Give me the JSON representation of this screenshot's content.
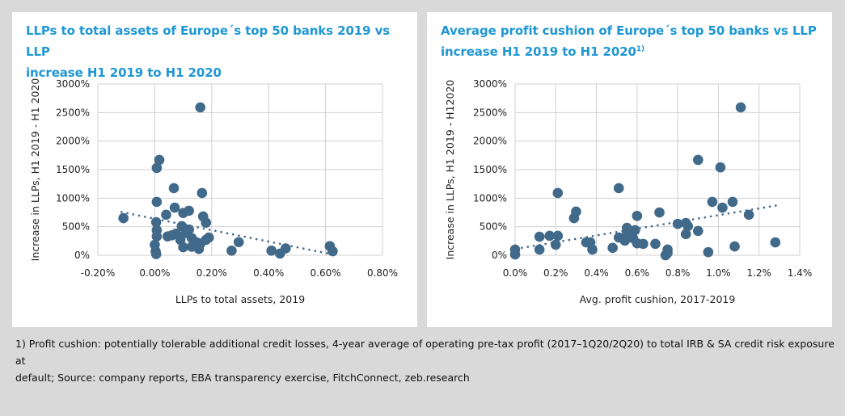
{
  "colors": {
    "title": "#1f97d4",
    "point": "#41698a",
    "grid": "#d0d0d0",
    "background": "#d9d9d9"
  },
  "chart_data": [
    {
      "type": "scatter",
      "title": "LLPs to total assets of Europe´s top 50 banks 2019 vs LLP increase H1 2019 to H1 2020",
      "title_line1": "LLPs to total assets of Europe´s top 50 banks 2019 vs LLP",
      "title_line2": "increase H1 2019 to H1 2020",
      "xlabel": "LLPs to total assets, 2019",
      "ylabel": "Increase in LLPs, H1 2019 - H1 2020",
      "xlim": [
        -0.2,
        0.8
      ],
      "ylim": [
        0,
        3000
      ],
      "grid": true,
      "legend": "none",
      "x_ticks": [
        "-0.20%",
        "0.00%",
        "0.20%",
        "0.40%",
        "0.60%",
        "0.80%"
      ],
      "x_tick_values": [
        -0.2,
        0.0,
        0.2,
        0.4,
        0.6,
        0.8
      ],
      "y_ticks": [
        "0%",
        "500%",
        "1000%",
        "1500%",
        "2000%",
        "2500%",
        "3000%"
      ],
      "y_tick_values": [
        0,
        500,
        1000,
        1500,
        2000,
        2500,
        3000
      ],
      "trendline": {
        "style": "dotted",
        "x": [
          -0.12,
          0.62
        ],
        "y": [
          760,
          20
        ]
      },
      "points": [
        [
          -0.11,
          650
        ],
        [
          0.16,
          2590
        ],
        [
          0.016,
          1670
        ],
        [
          0.007,
          1530
        ],
        [
          0.067,
          1175
        ],
        [
          0.166,
          1090
        ],
        [
          0.007,
          935
        ],
        [
          0.07,
          835
        ],
        [
          0.04,
          710
        ],
        [
          0.1,
          740
        ],
        [
          0.12,
          780
        ],
        [
          0.17,
          680
        ],
        [
          0.18,
          570
        ],
        [
          0.005,
          580
        ],
        [
          0.007,
          440
        ],
        [
          0.007,
          330
        ],
        [
          0.0,
          185
        ],
        [
          0.003,
          70
        ],
        [
          0.005,
          20
        ],
        [
          0.045,
          330
        ],
        [
          0.06,
          350
        ],
        [
          0.095,
          510
        ],
        [
          0.12,
          450
        ],
        [
          0.13,
          300
        ],
        [
          0.09,
          270
        ],
        [
          0.1,
          140
        ],
        [
          0.13,
          150
        ],
        [
          0.15,
          220
        ],
        [
          0.16,
          200
        ],
        [
          0.18,
          270
        ],
        [
          0.155,
          110
        ],
        [
          0.11,
          390
        ],
        [
          0.19,
          310
        ],
        [
          0.27,
          80
        ],
        [
          0.295,
          230
        ],
        [
          0.41,
          80
        ],
        [
          0.44,
          30
        ],
        [
          0.46,
          120
        ],
        [
          0.615,
          160
        ],
        [
          0.625,
          70
        ],
        [
          0.075,
          380
        ],
        [
          0.14,
          240
        ]
      ]
    },
    {
      "type": "scatter",
      "title": "Average profit cushion of Europe´s top 50 banks vs LLP increase H1 2019 to H1 2020",
      "title_line1": "Average profit cushion of Europe´s top 50 banks vs LLP",
      "title_line2": "increase H1 2019 to H1 2020",
      "title_footnote_mark": "1)",
      "xlabel": "Avg. profit cushion, 2017-2019",
      "ylabel": "Increase in LLPs, H1 2019 - H12020",
      "xlim": [
        0,
        1.4
      ],
      "ylim": [
        0,
        3000
      ],
      "grid": true,
      "legend": "none",
      "x_ticks": [
        "0.0%",
        "0.2%",
        "0.4%",
        "0.6%",
        "0.8%",
        "1.0%",
        "1.2%",
        "1.4%"
      ],
      "x_tick_values": [
        0,
        0.2,
        0.4,
        0.6,
        0.8,
        1.0,
        1.2,
        1.4
      ],
      "y_ticks": [
        "0%",
        "500%",
        "1000%",
        "1500%",
        "2000%",
        "2500%",
        "3000%"
      ],
      "y_tick_values": [
        0,
        500,
        1000,
        1500,
        2000,
        2500,
        3000
      ],
      "trendline": {
        "style": "dotted",
        "x": [
          0.0,
          1.3
        ],
        "y": [
          110,
          880
        ]
      },
      "points": [
        [
          0.0,
          100
        ],
        [
          0.0,
          15
        ],
        [
          0.12,
          325
        ],
        [
          0.12,
          100
        ],
        [
          0.17,
          340
        ],
        [
          0.21,
          340
        ],
        [
          0.2,
          185
        ],
        [
          0.21,
          1090
        ],
        [
          0.29,
          650
        ],
        [
          0.3,
          765
        ],
        [
          0.35,
          225
        ],
        [
          0.37,
          225
        ],
        [
          0.38,
          100
        ],
        [
          0.48,
          130
        ],
        [
          0.51,
          310
        ],
        [
          0.54,
          255
        ],
        [
          0.55,
          370
        ],
        [
          0.55,
          480
        ],
        [
          0.58,
          300
        ],
        [
          0.6,
          210
        ],
        [
          0.63,
          200
        ],
        [
          0.51,
          1175
        ],
        [
          0.6,
          690
        ],
        [
          0.59,
          440
        ],
        [
          0.69,
          200
        ],
        [
          0.71,
          750
        ],
        [
          0.75,
          100
        ],
        [
          0.75,
          40
        ],
        [
          0.74,
          0
        ],
        [
          0.8,
          550
        ],
        [
          0.84,
          565
        ],
        [
          0.85,
          510
        ],
        [
          0.84,
          370
        ],
        [
          0.9,
          425
        ],
        [
          0.9,
          1670
        ],
        [
          0.97,
          935
        ],
        [
          1.01,
          1540
        ],
        [
          1.02,
          835
        ],
        [
          1.07,
          935
        ],
        [
          0.95,
          55
        ],
        [
          1.08,
          155
        ],
        [
          1.15,
          710
        ],
        [
          1.11,
          2590
        ],
        [
          1.28,
          225
        ]
      ]
    }
  ],
  "footnote": {
    "line1": "1) Profit cushion: potentially tolerable additional credit losses, 4-year average of operating pre-tax profit (2017–1Q20/2Q20) to total IRB & SA credit risk exposure at",
    "line2": "default; Source: company reports, EBA transparency exercise, FitchConnect, zeb.research"
  }
}
